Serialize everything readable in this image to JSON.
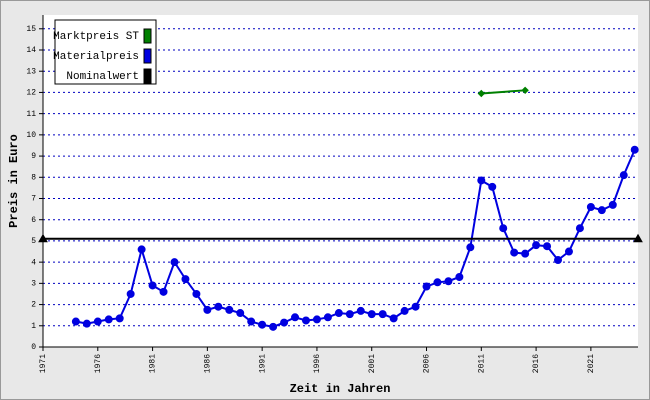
{
  "chart_data": {
    "type": "line",
    "x_label": "Zeit in Jahren",
    "y_label": "Preis in Euro",
    "xlim": [
      1971,
      2025.3
    ],
    "ylim": [
      0,
      15.65
    ],
    "xticks": [
      1971,
      1976,
      1981,
      1986,
      1991,
      1996,
      2001,
      2006,
      2011,
      2016,
      2021
    ],
    "yticks": [
      0,
      1,
      2,
      3,
      4,
      5,
      6,
      7,
      8,
      9,
      10,
      11,
      12,
      13,
      14,
      15
    ],
    "grid": true,
    "legend": "top-left",
    "series": [
      {
        "name": "Marktpreis ST",
        "color": "#008000",
        "marker": "diamond",
        "x": [
          2011,
          2015
        ],
        "values": [
          11.95,
          12.1
        ]
      },
      {
        "name": "Materialpreis",
        "color": "#0000e0",
        "marker": "circle",
        "x": [
          1974,
          1975,
          1976,
          1977,
          1978,
          1979,
          1980,
          1981,
          1982,
          1983,
          1984,
          1985,
          1986,
          1987,
          1988,
          1989,
          1990,
          1991,
          1992,
          1993,
          1994,
          1995,
          1996,
          1997,
          1998,
          1999,
          2000,
          2001,
          2002,
          2003,
          2004,
          2005,
          2006,
          2007,
          2008,
          2009,
          2010,
          2011,
          2012,
          2013,
          2014,
          2015,
          2016,
          2017,
          2018,
          2019,
          2020,
          2021,
          2022,
          2023,
          2024,
          2025
        ],
        "values": [
          1.2,
          1.1,
          1.2,
          1.3,
          1.35,
          2.5,
          4.6,
          2.9,
          2.6,
          4.0,
          3.2,
          2.5,
          1.75,
          1.9,
          1.75,
          1.6,
          1.2,
          1.05,
          0.95,
          1.15,
          1.4,
          1.25,
          1.3,
          1.4,
          1.6,
          1.55,
          1.7,
          1.55,
          1.55,
          1.35,
          1.7,
          1.9,
          2.85,
          3.05,
          3.1,
          3.3,
          4.7,
          7.85,
          7.55,
          5.6,
          4.45,
          4.4,
          4.8,
          4.75,
          4.1,
          4.5,
          5.6,
          6.6,
          6.45,
          6.7,
          8.1,
          9.3
        ]
      },
      {
        "name": "Nominalwert",
        "color": "#000000",
        "marker": "triangle",
        "x": [
          1971,
          2025.3
        ],
        "values": [
          5.1,
          5.1
        ]
      }
    ]
  }
}
